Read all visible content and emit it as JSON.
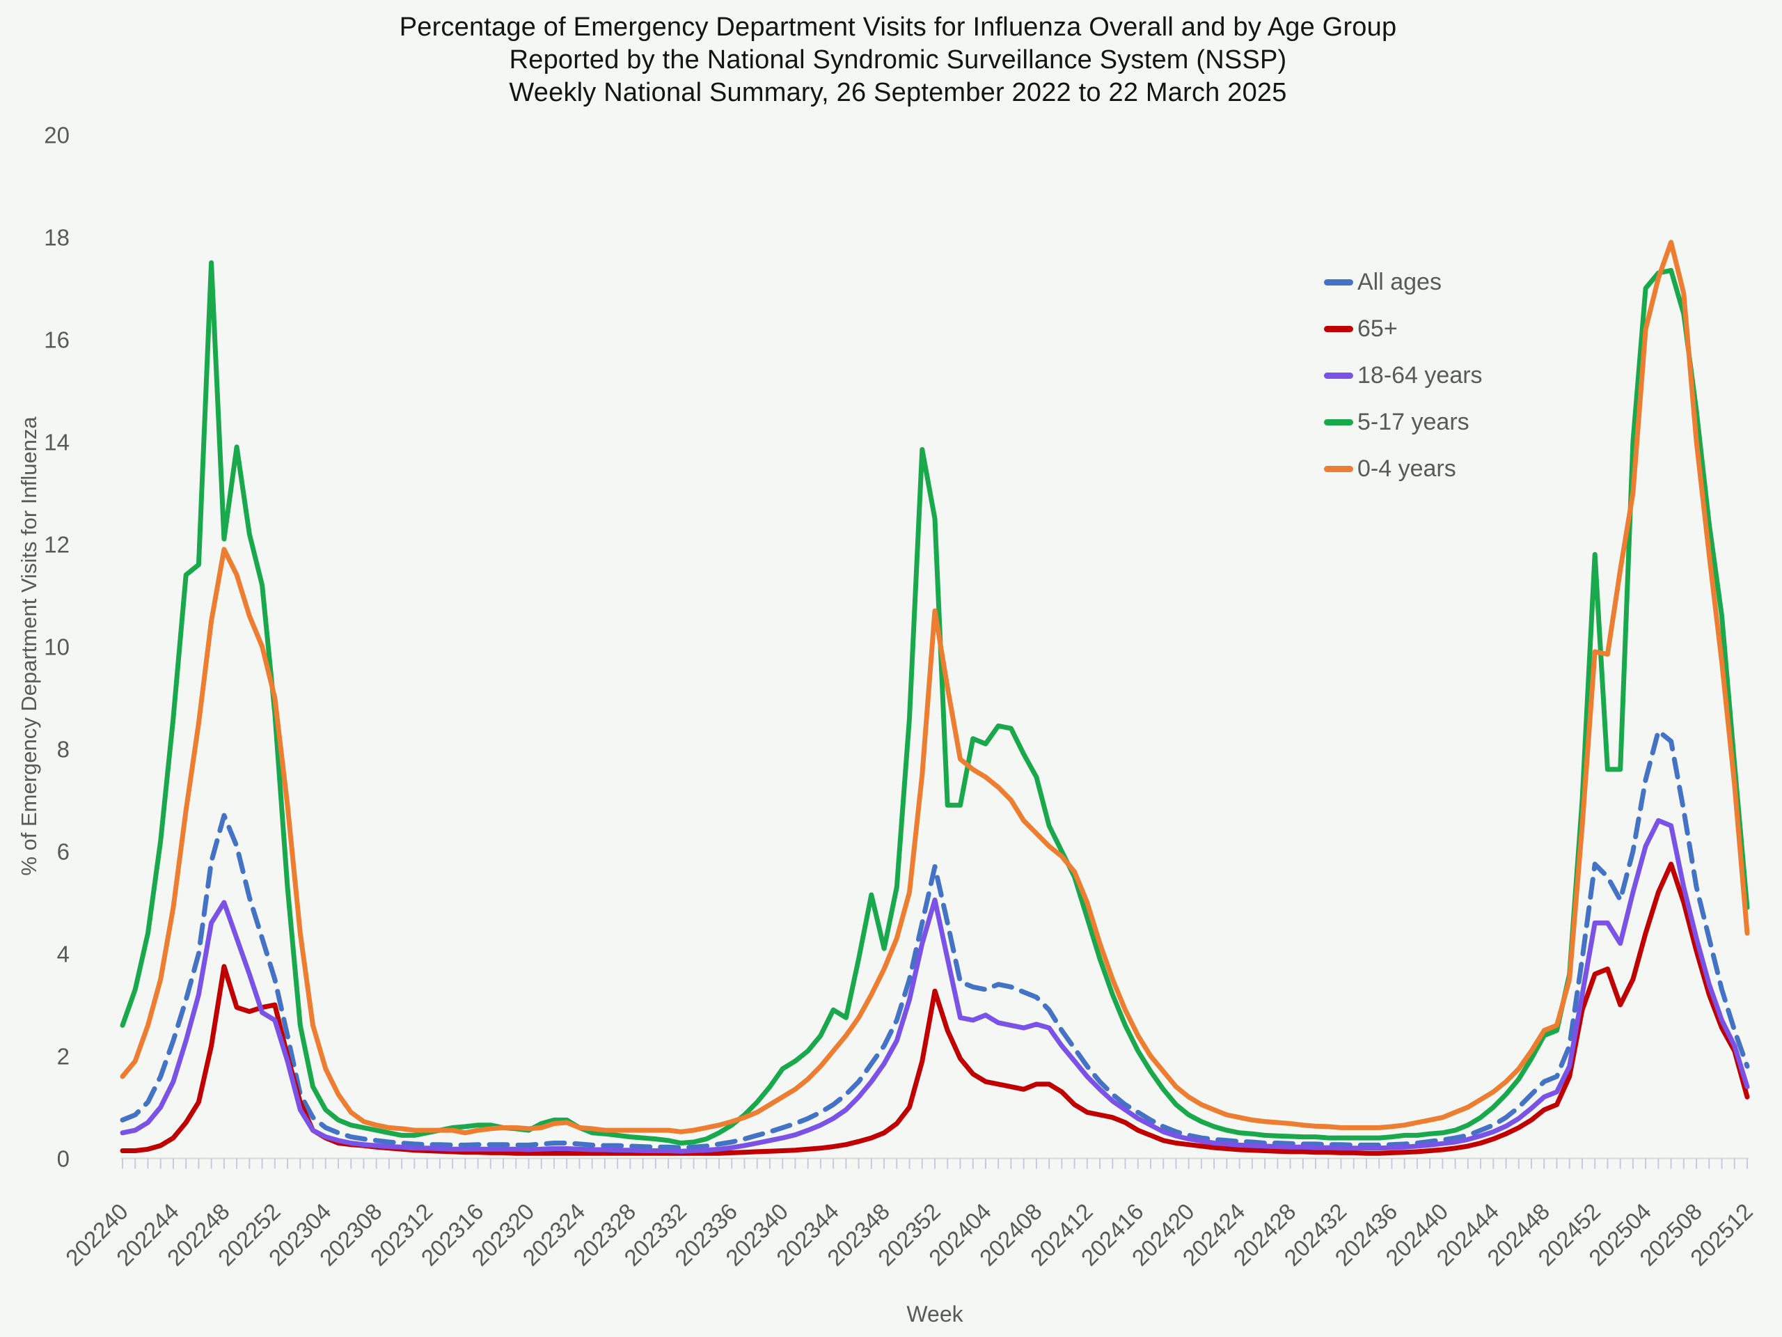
{
  "title": {
    "line1": "Percentage of Emergency Department Visits for Influenza Overall and by Age Group",
    "line2": "Reported by the National Syndromic Surveillance System (NSSP)",
    "line3": "Weekly National Summary, 26 September 2022 to 22 March 2025"
  },
  "colors": {
    "background": "#f4f7f4",
    "axis_text": "#595959",
    "title_text": "#141414",
    "tick": "#ccc6e0",
    "baseline": "#d9d9d9"
  },
  "chart_data": {
    "type": "line",
    "title": "Percentage of Emergency Department Visits for Influenza Overall and by Age Group Reported by the National Syndromic Surveillance System (NSSP) Weekly National Summary, 26 September 2022 to 22 March 2025",
    "xlabel": "Week",
    "ylabel": "% of Emergency Department Visits for Influenza",
    "ylim": [
      0,
      20
    ],
    "y_tick_step": 2,
    "grid": false,
    "legend_position": "upper right",
    "x_tick_labels": [
      "202240",
      "202244",
      "202248",
      "202252",
      "202304",
      "202308",
      "202312",
      "202316",
      "202320",
      "202324",
      "202328",
      "202332",
      "202336",
      "202340",
      "202344",
      "202348",
      "202352",
      "202404",
      "202408",
      "202412",
      "202416",
      "202420",
      "202424",
      "202428",
      "202432",
      "202436",
      "202440",
      "202444",
      "202448",
      "202452",
      "202504",
      "202508",
      "202512"
    ],
    "x_tick_every": 4,
    "weeks": [
      "202240",
      "202241",
      "202242",
      "202243",
      "202244",
      "202245",
      "202246",
      "202247",
      "202248",
      "202249",
      "202250",
      "202251",
      "202252",
      "202301",
      "202302",
      "202303",
      "202304",
      "202305",
      "202306",
      "202307",
      "202308",
      "202309",
      "202310",
      "202311",
      "202312",
      "202313",
      "202314",
      "202315",
      "202316",
      "202317",
      "202318",
      "202319",
      "202320",
      "202321",
      "202322",
      "202323",
      "202324",
      "202325",
      "202326",
      "202327",
      "202328",
      "202329",
      "202330",
      "202331",
      "202332",
      "202333",
      "202334",
      "202335",
      "202336",
      "202337",
      "202338",
      "202339",
      "202340",
      "202341",
      "202342",
      "202343",
      "202344",
      "202345",
      "202346",
      "202347",
      "202348",
      "202349",
      "202350",
      "202351",
      "202352",
      "202401",
      "202402",
      "202403",
      "202404",
      "202405",
      "202406",
      "202407",
      "202408",
      "202409",
      "202410",
      "202411",
      "202412",
      "202413",
      "202414",
      "202415",
      "202416",
      "202417",
      "202418",
      "202419",
      "202420",
      "202421",
      "202422",
      "202423",
      "202424",
      "202425",
      "202426",
      "202427",
      "202428",
      "202429",
      "202430",
      "202431",
      "202432",
      "202433",
      "202434",
      "202435",
      "202436",
      "202437",
      "202438",
      "202439",
      "202440",
      "202441",
      "202442",
      "202443",
      "202444",
      "202445",
      "202446",
      "202447",
      "202448",
      "202449",
      "202450",
      "202451",
      "202452",
      "202501",
      "202502",
      "202503",
      "202504",
      "202505",
      "202506",
      "202507",
      "202508",
      "202509",
      "202510",
      "202511",
      "202512"
    ],
    "series": [
      {
        "name": "All ages",
        "color": "#4472C4",
        "dashed": true,
        "values": [
          0.75,
          0.85,
          1.1,
          1.6,
          2.3,
          3.1,
          4.0,
          5.8,
          6.7,
          6.1,
          5.1,
          4.3,
          3.5,
          2.4,
          1.25,
          0.8,
          0.6,
          0.5,
          0.42,
          0.38,
          0.35,
          0.32,
          0.3,
          0.28,
          0.27,
          0.27,
          0.26,
          0.26,
          0.27,
          0.27,
          0.27,
          0.26,
          0.26,
          0.28,
          0.3,
          0.3,
          0.28,
          0.26,
          0.25,
          0.25,
          0.24,
          0.23,
          0.22,
          0.22,
          0.21,
          0.22,
          0.24,
          0.28,
          0.32,
          0.38,
          0.45,
          0.52,
          0.6,
          0.68,
          0.78,
          0.9,
          1.05,
          1.25,
          1.5,
          1.85,
          2.2,
          2.7,
          3.5,
          4.6,
          5.7,
          4.6,
          3.45,
          3.35,
          3.3,
          3.4,
          3.35,
          3.25,
          3.15,
          2.9,
          2.5,
          2.15,
          1.8,
          1.5,
          1.25,
          1.05,
          0.9,
          0.75,
          0.62,
          0.52,
          0.45,
          0.4,
          0.37,
          0.35,
          0.33,
          0.32,
          0.3,
          0.3,
          0.29,
          0.28,
          0.28,
          0.27,
          0.27,
          0.26,
          0.26,
          0.26,
          0.27,
          0.28,
          0.3,
          0.33,
          0.36,
          0.4,
          0.45,
          0.55,
          0.65,
          0.8,
          1.0,
          1.25,
          1.5,
          1.6,
          2.2,
          3.9,
          5.75,
          5.5,
          5.05,
          6.0,
          7.4,
          8.35,
          8.15,
          6.8,
          5.3,
          4.3,
          3.3,
          2.5,
          1.8
        ]
      },
      {
        "name": "65+",
        "color": "#C00000",
        "dashed": false,
        "values": [
          0.15,
          0.15,
          0.18,
          0.25,
          0.4,
          0.7,
          1.1,
          2.2,
          3.75,
          2.95,
          2.87,
          2.95,
          3.0,
          2.0,
          1.1,
          0.55,
          0.4,
          0.3,
          0.27,
          0.25,
          0.22,
          0.2,
          0.18,
          0.16,
          0.15,
          0.14,
          0.13,
          0.12,
          0.12,
          0.11,
          0.11,
          0.1,
          0.1,
          0.1,
          0.1,
          0.1,
          0.1,
          0.1,
          0.1,
          0.1,
          0.1,
          0.1,
          0.1,
          0.1,
          0.1,
          0.1,
          0.1,
          0.1,
          0.11,
          0.12,
          0.13,
          0.14,
          0.15,
          0.16,
          0.18,
          0.2,
          0.23,
          0.27,
          0.33,
          0.4,
          0.5,
          0.68,
          1.0,
          1.9,
          3.27,
          2.5,
          1.95,
          1.65,
          1.5,
          1.45,
          1.4,
          1.35,
          1.45,
          1.45,
          1.3,
          1.05,
          0.9,
          0.85,
          0.8,
          0.7,
          0.55,
          0.45,
          0.35,
          0.3,
          0.27,
          0.24,
          0.21,
          0.19,
          0.17,
          0.16,
          0.15,
          0.14,
          0.13,
          0.13,
          0.12,
          0.12,
          0.11,
          0.11,
          0.1,
          0.1,
          0.11,
          0.12,
          0.13,
          0.15,
          0.17,
          0.2,
          0.24,
          0.3,
          0.38,
          0.48,
          0.6,
          0.75,
          0.95,
          1.05,
          1.6,
          2.9,
          3.6,
          3.7,
          3.0,
          3.5,
          4.4,
          5.2,
          5.75,
          5.0,
          4.05,
          3.2,
          2.55,
          2.1,
          1.2
        ]
      },
      {
        "name": "18-64 years",
        "color": "#7B52E6",
        "dashed": false,
        "values": [
          0.5,
          0.55,
          0.7,
          1.0,
          1.5,
          2.3,
          3.2,
          4.6,
          5.0,
          4.3,
          3.6,
          2.85,
          2.7,
          1.9,
          0.95,
          0.55,
          0.42,
          0.35,
          0.3,
          0.27,
          0.25,
          0.23,
          0.22,
          0.2,
          0.2,
          0.19,
          0.18,
          0.18,
          0.18,
          0.18,
          0.18,
          0.18,
          0.17,
          0.18,
          0.19,
          0.19,
          0.18,
          0.17,
          0.17,
          0.16,
          0.16,
          0.15,
          0.15,
          0.15,
          0.14,
          0.15,
          0.16,
          0.18,
          0.21,
          0.25,
          0.3,
          0.35,
          0.4,
          0.46,
          0.55,
          0.65,
          0.78,
          0.95,
          1.2,
          1.5,
          1.85,
          2.3,
          3.1,
          4.2,
          5.05,
          3.9,
          2.75,
          2.7,
          2.8,
          2.65,
          2.6,
          2.55,
          2.62,
          2.55,
          2.2,
          1.9,
          1.6,
          1.35,
          1.12,
          0.95,
          0.78,
          0.65,
          0.52,
          0.44,
          0.38,
          0.34,
          0.3,
          0.28,
          0.26,
          0.25,
          0.24,
          0.23,
          0.22,
          0.22,
          0.21,
          0.21,
          0.2,
          0.2,
          0.2,
          0.2,
          0.21,
          0.22,
          0.24,
          0.26,
          0.29,
          0.32,
          0.37,
          0.44,
          0.52,
          0.63,
          0.78,
          0.98,
          1.2,
          1.3,
          1.8,
          3.2,
          4.6,
          4.6,
          4.2,
          5.2,
          6.1,
          6.6,
          6.5,
          5.3,
          4.3,
          3.4,
          2.7,
          2.2,
          1.4
        ]
      },
      {
        "name": "5-17 years",
        "color": "#1AA84C",
        "dashed": false,
        "values": [
          2.6,
          3.3,
          4.4,
          6.2,
          8.6,
          11.4,
          11.6,
          17.5,
          12.1,
          13.9,
          12.2,
          11.2,
          8.7,
          5.3,
          2.6,
          1.4,
          0.95,
          0.75,
          0.65,
          0.6,
          0.55,
          0.5,
          0.45,
          0.45,
          0.5,
          0.55,
          0.6,
          0.62,
          0.65,
          0.65,
          0.6,
          0.58,
          0.55,
          0.68,
          0.75,
          0.75,
          0.6,
          0.5,
          0.48,
          0.45,
          0.42,
          0.4,
          0.38,
          0.35,
          0.3,
          0.32,
          0.38,
          0.5,
          0.65,
          0.85,
          1.1,
          1.4,
          1.75,
          1.9,
          2.1,
          2.4,
          2.9,
          2.75,
          3.9,
          5.15,
          4.1,
          5.3,
          8.6,
          13.85,
          12.5,
          6.9,
          6.9,
          8.2,
          8.1,
          8.45,
          8.4,
          7.9,
          7.45,
          6.5,
          6.0,
          5.5,
          4.7,
          3.9,
          3.2,
          2.6,
          2.1,
          1.7,
          1.35,
          1.05,
          0.85,
          0.72,
          0.62,
          0.55,
          0.5,
          0.48,
          0.45,
          0.44,
          0.43,
          0.42,
          0.42,
          0.4,
          0.4,
          0.4,
          0.4,
          0.4,
          0.42,
          0.45,
          0.45,
          0.48,
          0.5,
          0.55,
          0.65,
          0.8,
          1.0,
          1.25,
          1.55,
          1.95,
          2.4,
          2.5,
          3.6,
          7.0,
          11.8,
          7.6,
          7.6,
          14.0,
          17.0,
          17.3,
          17.35,
          16.5,
          14.6,
          12.4,
          10.6,
          7.7,
          4.9
        ]
      },
      {
        "name": "0-4 years",
        "color": "#ED7D31",
        "dashed": false,
        "values": [
          1.6,
          1.9,
          2.6,
          3.5,
          4.9,
          6.8,
          8.5,
          10.5,
          11.9,
          11.4,
          10.6,
          10.0,
          9.0,
          6.9,
          4.4,
          2.6,
          1.75,
          1.25,
          0.9,
          0.72,
          0.65,
          0.6,
          0.58,
          0.55,
          0.55,
          0.55,
          0.55,
          0.5,
          0.55,
          0.58,
          0.6,
          0.6,
          0.58,
          0.6,
          0.68,
          0.7,
          0.6,
          0.58,
          0.55,
          0.55,
          0.55,
          0.55,
          0.55,
          0.55,
          0.52,
          0.55,
          0.6,
          0.65,
          0.72,
          0.8,
          0.9,
          1.05,
          1.2,
          1.35,
          1.55,
          1.8,
          2.1,
          2.4,
          2.75,
          3.2,
          3.7,
          4.3,
          5.2,
          7.5,
          10.7,
          9.2,
          7.8,
          7.6,
          7.45,
          7.25,
          7.0,
          6.6,
          6.35,
          6.1,
          5.9,
          5.6,
          5.0,
          4.2,
          3.5,
          2.9,
          2.4,
          2.0,
          1.7,
          1.4,
          1.2,
          1.05,
          0.95,
          0.85,
          0.8,
          0.75,
          0.72,
          0.7,
          0.68,
          0.65,
          0.63,
          0.62,
          0.6,
          0.6,
          0.6,
          0.6,
          0.62,
          0.65,
          0.7,
          0.75,
          0.8,
          0.9,
          1.0,
          1.15,
          1.3,
          1.5,
          1.75,
          2.1,
          2.5,
          2.6,
          3.5,
          6.5,
          9.9,
          9.85,
          11.5,
          13.0,
          16.2,
          17.2,
          17.9,
          16.9,
          14.0,
          11.8,
          9.7,
          7.3,
          4.4
        ]
      }
    ]
  }
}
